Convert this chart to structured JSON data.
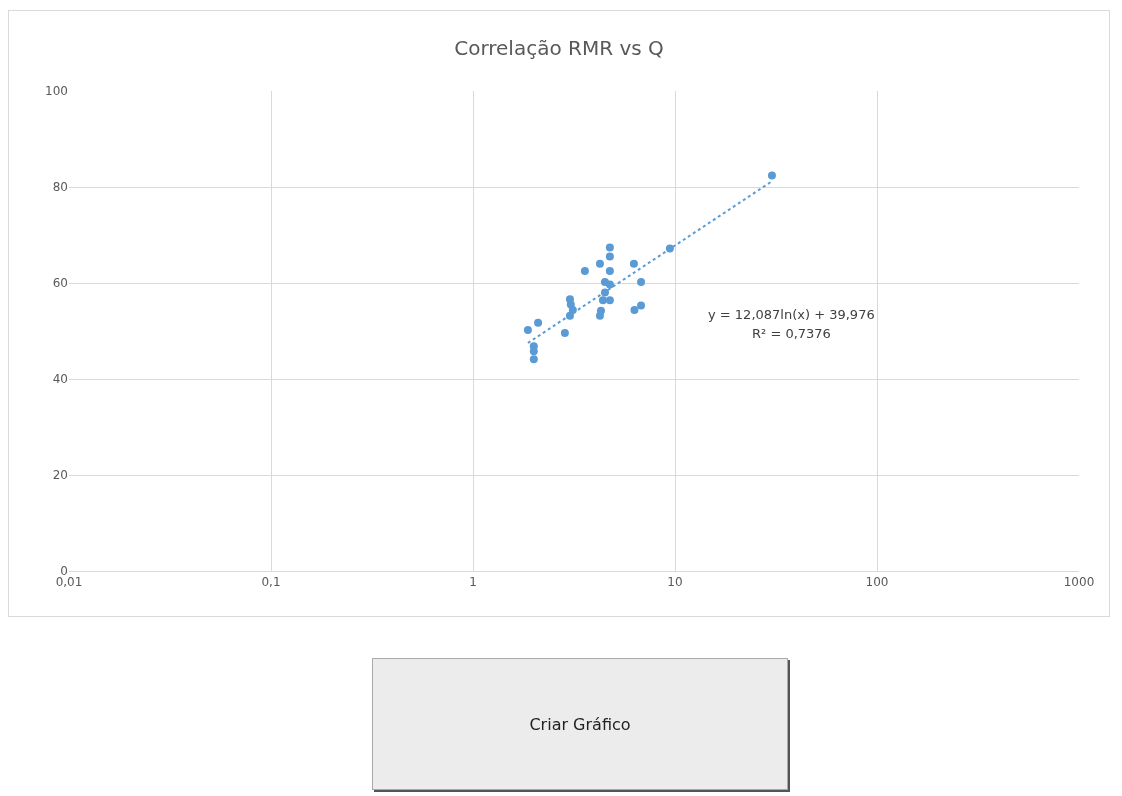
{
  "chart_data": {
    "type": "scatter",
    "title": "Correlação RMR vs Q",
    "log": "x",
    "grid": true,
    "xlim": [
      0.01,
      1000
    ],
    "xticks": [
      {
        "value": 0.01,
        "label": "0,01"
      },
      {
        "value": 0.1,
        "label": "0,1"
      },
      1,
      10,
      100,
      1000
    ],
    "ylim": [
      0,
      100
    ],
    "yticks": [
      0,
      20,
      40,
      60,
      80,
      100
    ],
    "series": [
      {
        "type": "scatter",
        "marker": "circle",
        "color": "#5b9bd5",
        "x": [
          4.76,
          4.76,
          3.58,
          4.25,
          6.26,
          4.76,
          4.5,
          4.76,
          6.79,
          4.5,
          4.76,
          4.4,
          3.02,
          3.05,
          3.12,
          3.02,
          4.3,
          4.25,
          6.3,
          6.79,
          2.85,
          1.87,
          2.1,
          2.0,
          2.0,
          2.0,
          9.43,
          30.2
        ],
        "values": [
          67.4,
          65.5,
          62.5,
          64.0,
          64.0,
          62.5,
          60.2,
          59.7,
          60.2,
          58.0,
          56.4,
          56.4,
          56.6,
          55.5,
          54.4,
          53.2,
          54.2,
          53.2,
          54.4,
          55.3,
          49.6,
          50.2,
          51.7,
          46.8,
          45.8,
          44.1,
          67.2,
          82.4
        ]
      },
      {
        "type": "line",
        "marker": "none",
        "line_style": "dotted",
        "color": "#5b9bd5",
        "x": [
          1.87,
          30.2
        ],
        "values": [
          47.5,
          81.2
        ]
      }
    ],
    "annotations": [
      "y = 12,087ln(x) + 39,976",
      "R² = 0,7376",
      "Criar Gráfico"
    ]
  }
}
